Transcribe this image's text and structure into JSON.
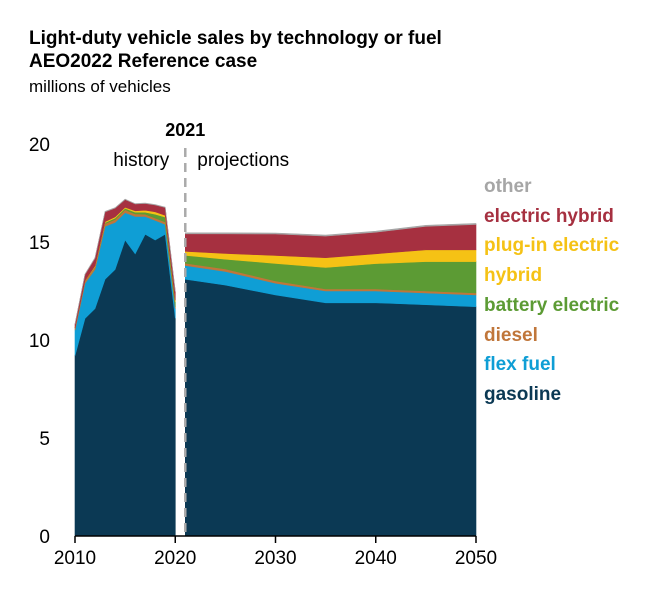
{
  "chart_data": {
    "type": "area",
    "title": "Light-duty vehicle sales by technology or fuel",
    "subtitle": "AEO2022 Reference case",
    "ylabel": "millions of vehicles",
    "xlim": [
      2010,
      2050
    ],
    "ylim": [
      0,
      20
    ],
    "x_ticks": [
      "2010",
      "2020",
      "2030",
      "2040",
      "2050"
    ],
    "y_ticks": [
      "0",
      "5",
      "10",
      "15",
      "20"
    ],
    "divider": {
      "x": 2021,
      "label": "2021",
      "left_label": "history",
      "right_label": "projections"
    },
    "legend_order": [
      "other",
      "electric hybrid",
      "plug-in electric hybrid",
      "battery electric",
      "diesel",
      "flex fuel",
      "gasoline"
    ],
    "x_history": [
      2010,
      2011,
      2012,
      2013,
      2014,
      2015,
      2016,
      2017,
      2018,
      2019,
      2020
    ],
    "x_projection": [
      2021,
      2025,
      2030,
      2035,
      2040,
      2045,
      2050
    ],
    "series": [
      {
        "name": "gasoline",
        "color": "#0b3954",
        "history": [
          9.2,
          11.1,
          11.6,
          13.1,
          13.6,
          15.1,
          14.4,
          15.4,
          15.1,
          15.4,
          11.1
        ],
        "projection": [
          13.1,
          12.8,
          12.3,
          11.9,
          11.9,
          11.8,
          11.7
        ]
      },
      {
        "name": "flex fuel",
        "color": "#0f9ed5",
        "history": [
          1.3,
          1.8,
          2.0,
          2.7,
          2.4,
          1.4,
          1.9,
          0.9,
          1.0,
          0.5,
          0.5
        ],
        "projection": [
          0.7,
          0.7,
          0.6,
          0.6,
          0.6,
          0.6,
          0.6
        ]
      },
      {
        "name": "diesel",
        "color": "#c0763a",
        "history": [
          0.1,
          0.12,
          0.12,
          0.14,
          0.15,
          0.15,
          0.13,
          0.12,
          0.12,
          0.12,
          0.1
        ],
        "projection": [
          0.12,
          0.12,
          0.11,
          0.1,
          0.1,
          0.1,
          0.1
        ]
      },
      {
        "name": "battery electric",
        "color": "#5c9b34",
        "history": [
          0.0,
          0.01,
          0.02,
          0.05,
          0.07,
          0.07,
          0.09,
          0.1,
          0.2,
          0.25,
          0.25
        ],
        "projection": [
          0.4,
          0.5,
          0.9,
          1.1,
          1.3,
          1.5,
          1.6
        ]
      },
      {
        "name": "plug-in electric hybrid",
        "color": "#f5c215",
        "history": [
          0.0,
          0.01,
          0.04,
          0.05,
          0.06,
          0.05,
          0.07,
          0.1,
          0.12,
          0.09,
          0.07
        ],
        "projection": [
          0.2,
          0.3,
          0.4,
          0.5,
          0.5,
          0.6,
          0.6
        ]
      },
      {
        "name": "electric hybrid",
        "color": "#a63040",
        "history": [
          0.2,
          0.3,
          0.4,
          0.5,
          0.45,
          0.4,
          0.35,
          0.35,
          0.35,
          0.4,
          0.45
        ],
        "projection": [
          0.9,
          1.0,
          1.1,
          1.1,
          1.1,
          1.2,
          1.3
        ]
      },
      {
        "name": "other",
        "color": "#a6a6a6",
        "history": [
          0.02,
          0.02,
          0.02,
          0.02,
          0.02,
          0.02,
          0.02,
          0.02,
          0.02,
          0.02,
          0.02
        ],
        "projection": [
          0.05,
          0.05,
          0.05,
          0.05,
          0.05,
          0.05,
          0.05
        ]
      }
    ]
  },
  "legend": [
    {
      "label": "other",
      "color": "#a6a6a6"
    },
    {
      "label": "electric hybrid",
      "color": "#a63040"
    },
    {
      "label": "plug-in electric",
      "color": "#f5c215"
    },
    {
      "label": "hybrid",
      "color": "#f5c215"
    },
    {
      "label": "battery electric",
      "color": "#5c9b34"
    },
    {
      "label": "diesel",
      "color": "#c0763a"
    },
    {
      "label": "flex fuel",
      "color": "#0f9ed5"
    },
    {
      "label": "gasoline",
      "color": "#0b3954"
    }
  ]
}
